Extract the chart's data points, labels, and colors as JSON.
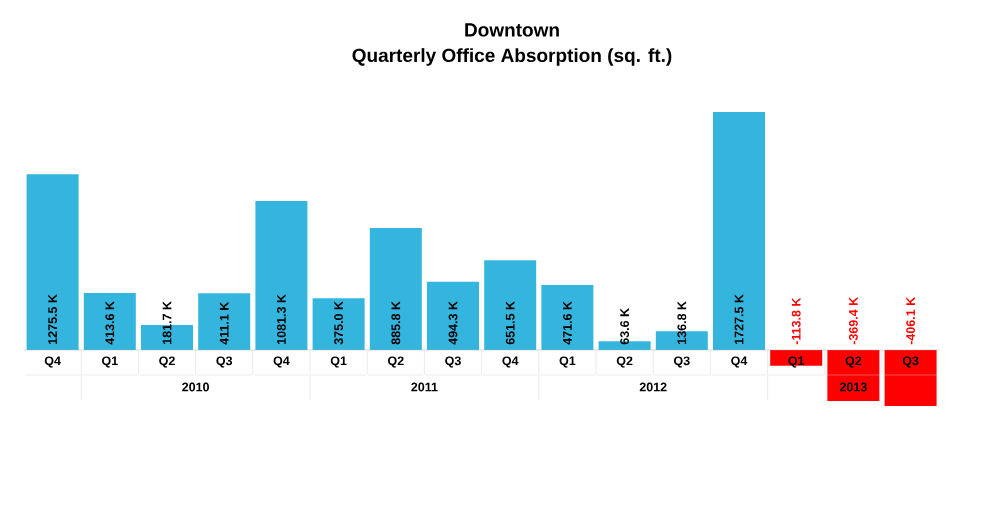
{
  "chart_data": {
    "type": "bar",
    "title": "Downtown",
    "subtitle": "Quarterly Office Absorption (sq. ft.)",
    "categories": [
      "Q4",
      "Q1",
      "Q2",
      "Q3",
      "Q4",
      "Q1",
      "Q2",
      "Q3",
      "Q4",
      "Q1",
      "Q2",
      "Q3",
      "Q4",
      "Q1",
      "Q2",
      "Q3"
    ],
    "values": [
      1275.5,
      413.6,
      181.7,
      411.1,
      1081.3,
      375.0,
      885.8,
      494.3,
      651.5,
      471.6,
      63.6,
      136.8,
      1727.5,
      -113.8,
      -369.4,
      -406.1
    ],
    "colors": [
      "#33b5de",
      "#33b5de",
      "#33b5de",
      "#33b5de",
      "#33b5de",
      "#33b5de",
      "#33b5de",
      "#33b5de",
      "#33b5de",
      "#33b5de",
      "#33b5de",
      "#33b5de",
      "#33b5de",
      "#ff0000",
      "#ff0000",
      "#ff0000"
    ],
    "value_labels": [
      "1275.5 K",
      "413.6 K",
      "181.7 K",
      "411.1 K",
      "1081.3 K",
      "375.0 K",
      "885.8 K",
      "494.3 K",
      "651.5 K",
      "471.6 K",
      "63.6 K",
      "136.8 K",
      "1727.5 K",
      "-113.8 K",
      "-369.4 K",
      "-406.1 K"
    ],
    "annotations": [
      "2010",
      "2011",
      "2012",
      "2013"
    ]
  }
}
